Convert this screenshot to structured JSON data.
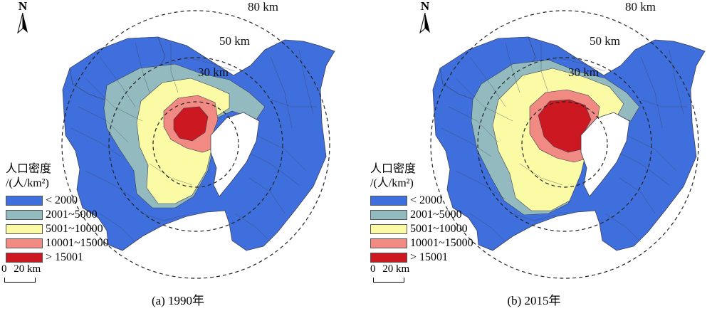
{
  "colors": {
    "lt2000": "#3f6fdc",
    "c2001_5000": "#93bbbf",
    "c5001_10000": "#fbfba6",
    "c10001_15000": "#f08a83",
    "gt15001": "#cc1820",
    "border": "#3a3f55",
    "ring": "#222222"
  },
  "rings": [
    "30 km",
    "50 km",
    "80 km"
  ],
  "north_label": "N",
  "legend": {
    "title": "人口密度",
    "unit": "/(人/km²)",
    "items": [
      {
        "label": "<  2000",
        "color": "#3f6fdc"
      },
      {
        "label": "2001~5000",
        "color": "#93bbbf"
      },
      {
        "label": "5001~10000",
        "color": "#fbfba6"
      },
      {
        "label": "10001~15000",
        "color": "#f08a83"
      },
      {
        "label": "> 15001",
        "color": "#cc1820"
      }
    ]
  },
  "scale": {
    "zero": "0",
    "dist": "20 km"
  },
  "panels": [
    {
      "caption": "(a) 1990年",
      "year": "1990"
    },
    {
      "caption": "(b) 2015年",
      "year": "2015"
    }
  ]
}
